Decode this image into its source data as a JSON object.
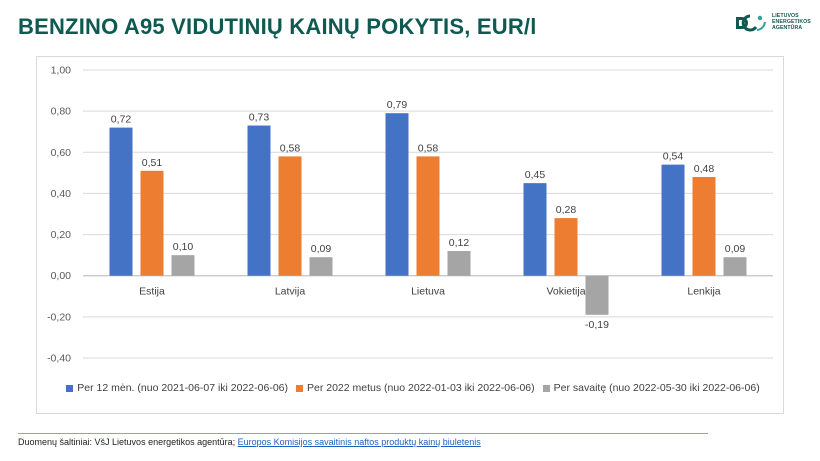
{
  "title": "BENZINO A95 VIDUTINIŲ KAINŲ POKYTIS, EUR/l",
  "logo": {
    "text": "LIETUVOS\nENERGETIKOS\nAGENTŪRA",
    "color": "#0e5a51"
  },
  "footer": {
    "source_label": "Duomenų šaltiniai: VšJ Lietuvos energetikos agentūra; ",
    "link_text": "Europos Komisijos savaitinis naftos produktų kainų biuletenis"
  },
  "chart_data": {
    "type": "bar",
    "title": "",
    "xlabel": "",
    "ylabel": "",
    "ylim": [
      -0.4,
      1.0
    ],
    "yticks": [
      "-0,40",
      "-0,20",
      "0,00",
      "0,20",
      "0,40",
      "0,60",
      "0,80",
      "1,00"
    ],
    "grid": true,
    "legend_position": "bottom",
    "categories": [
      "Estija",
      "Latvija",
      "Lietuva",
      "Vokietija",
      "Lenkija"
    ],
    "series": [
      {
        "name": "Per 12 mėn. (nuo 2021-06-07 iki 2022-06-06)",
        "color": "#4472c4",
        "values": [
          0.72,
          0.73,
          0.79,
          0.45,
          0.54
        ],
        "labels": [
          "0,72",
          "0,73",
          "0,79",
          "0,45",
          "0,54"
        ]
      },
      {
        "name": "Per 2022 metus (nuo 2022-01-03 iki 2022-06-06)",
        "color": "#ed7d31",
        "values": [
          0.51,
          0.58,
          0.58,
          0.28,
          0.48
        ],
        "labels": [
          "0,51",
          "0,58",
          "0,58",
          "0,28",
          "0,48"
        ]
      },
      {
        "name": "Per savaitę (nuo 2022-05-30 iki 2022-06-06)",
        "color": "#a5a5a5",
        "values": [
          0.1,
          0.09,
          0.12,
          -0.19,
          0.09
        ],
        "labels": [
          "0,10",
          "0,09",
          "0,12",
          "-0,19",
          "0,09"
        ]
      }
    ]
  }
}
